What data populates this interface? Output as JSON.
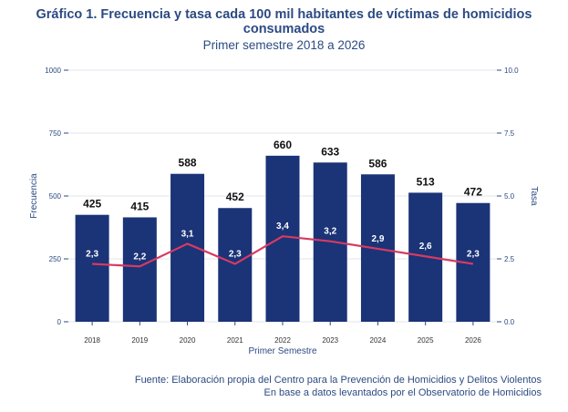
{
  "title": {
    "main": "Gráfico 1. Frecuencia y tasa cada 100 mil habitantes de víctimas de homicidios consumados",
    "subtitle": "Primer semestre 2018 a 2026"
  },
  "source": {
    "line1": "Fuente: Elaboración propia del Centro para la Prevención de Homicidios y Delitos Violentos",
    "line2": "En base a datos levantados por el Observatorio de Homicidios"
  },
  "colors": {
    "bar": "#1b3377",
    "line": "#d63a63",
    "axis_text": "#2c4a82",
    "grid": "#e3e6ec"
  },
  "chart_data": {
    "type": "bar",
    "categories": [
      "2018",
      "2019",
      "2020",
      "2021",
      "2022",
      "2023",
      "2024",
      "2025",
      "2026"
    ],
    "series": [
      {
        "name": "Frecuencia",
        "type": "bar",
        "axis": "left",
        "values": [
          425,
          415,
          588,
          452,
          660,
          633,
          586,
          513,
          472
        ]
      },
      {
        "name": "Tasa",
        "type": "line",
        "axis": "right",
        "values": [
          2.3,
          2.2,
          3.1,
          2.3,
          3.4,
          3.2,
          2.9,
          2.6,
          2.3
        ]
      }
    ],
    "bar_labels": [
      "425",
      "415",
      "588",
      "452",
      "660",
      "633",
      "586",
      "513",
      "472"
    ],
    "line_labels": [
      "2,3",
      "2,2",
      "3,1",
      "2,3",
      "3,4",
      "3,2",
      "2,9",
      "2,6",
      "2,3"
    ],
    "xlabel": "Primer Semestre",
    "ylabel_left": "Frecuencia",
    "ylabel_right": "Tasa",
    "ylim_left": [
      0,
      1000
    ],
    "ylim_right": [
      0,
      10
    ],
    "yticks_left": [
      0,
      250,
      500,
      750,
      1000
    ],
    "ytick_labels_left": [
      "0",
      "250",
      "500",
      "750",
      "1000"
    ],
    "yticks_right": [
      0,
      2.5,
      5,
      7.5,
      10
    ],
    "ytick_labels_right": [
      "0.0",
      "2.5",
      "5.0",
      "7.5",
      "10.0"
    ],
    "grid": true
  }
}
